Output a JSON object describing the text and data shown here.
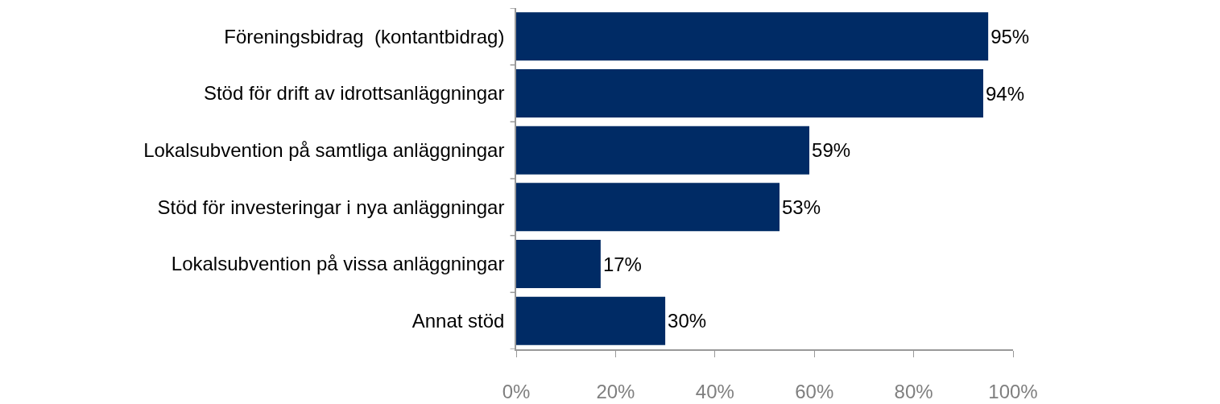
{
  "chart_data": {
    "type": "bar",
    "orientation": "horizontal",
    "categories": [
      "Föreningsbidrag  (kontantbidrag)",
      "Stöd för drift av idrottsanläggningar",
      "Lokalsubvention på samtliga anläggningar",
      "Stöd för investeringar i nya anläggningar",
      "Lokalsubvention på vissa anläggningar",
      "Annat stöd"
    ],
    "values": [
      95,
      94,
      59,
      53,
      17,
      30
    ],
    "value_labels": [
      "95%",
      "94%",
      "59%",
      "53%",
      "17%",
      "30%"
    ],
    "color": "#002b65",
    "xlim": [
      0,
      100
    ],
    "xticks": [
      {
        "value": 0,
        "label": "0%"
      },
      {
        "value": 20,
        "label": "20%"
      },
      {
        "value": 40,
        "label": "40%"
      },
      {
        "value": 60,
        "label": "60%"
      },
      {
        "value": 80,
        "label": "80%"
      },
      {
        "value": 100,
        "label": "100%"
      }
    ],
    "grid": false,
    "legend": false
  }
}
